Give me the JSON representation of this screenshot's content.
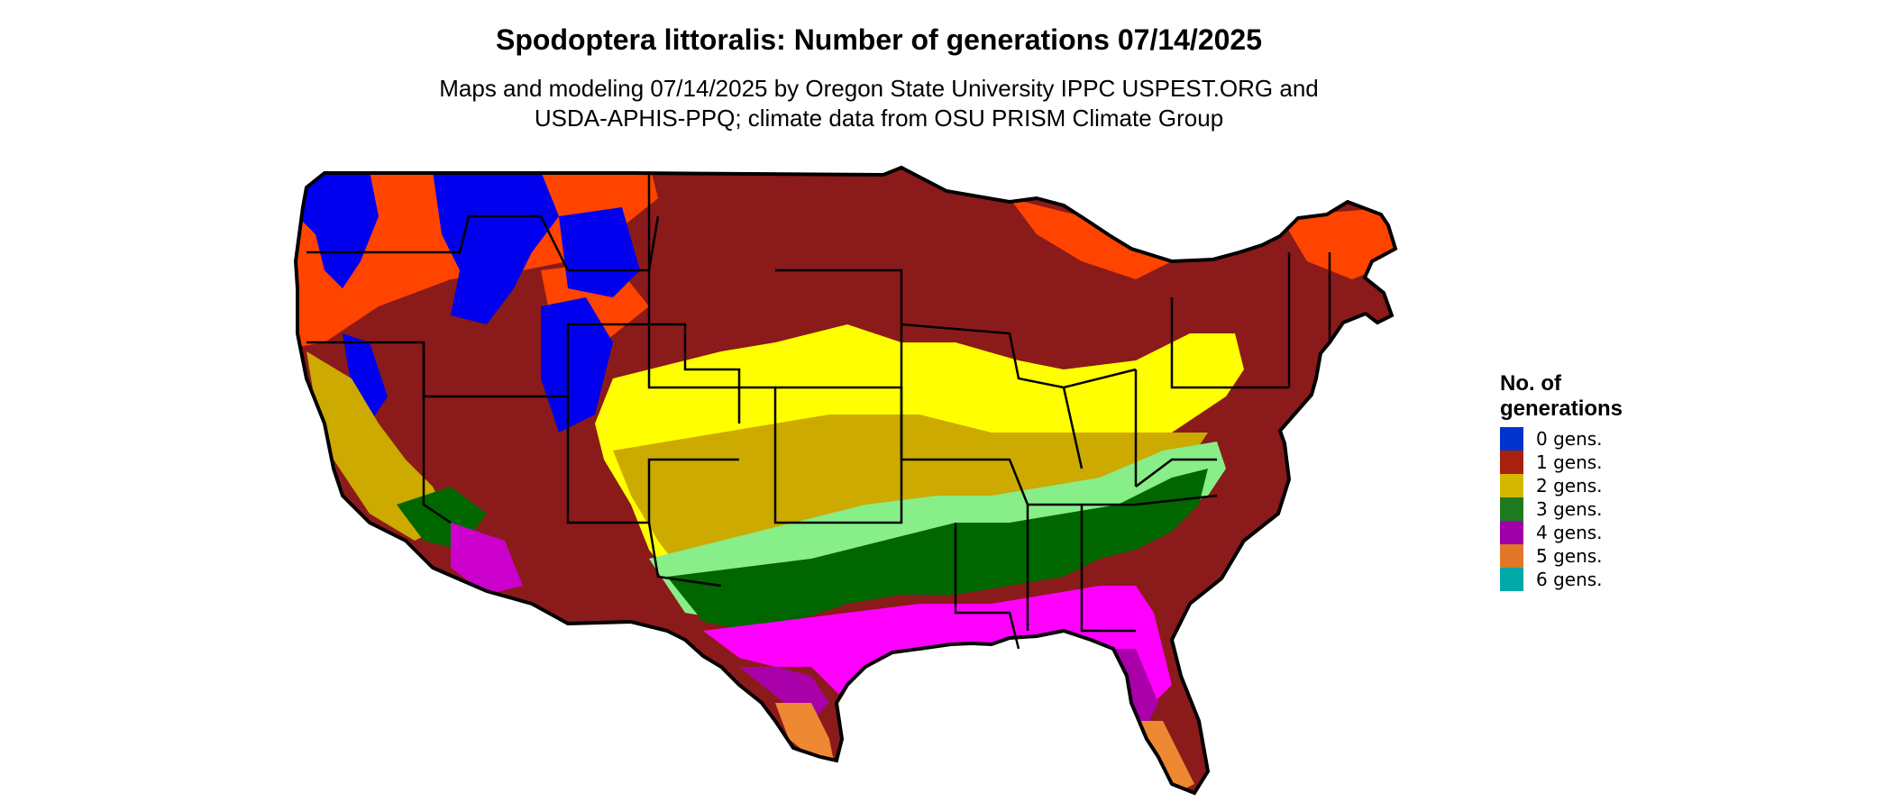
{
  "header": {
    "title": "Spodoptera littoralis: Number of generations 07/14/2025",
    "subtitle_line1": "Maps and modeling 07/14/2025 by Oregon State University IPPC USPEST.ORG and",
    "subtitle_line2": "USDA-APHIS-PPQ; climate data from OSU PRISM Climate Group"
  },
  "legend": {
    "title": "No. of generations",
    "items": [
      {
        "label": "0 gens.",
        "color": "#0033cc"
      },
      {
        "label": "1 gens.",
        "color": "#a8200e"
      },
      {
        "label": "2 gens.",
        "color": "#d4b800"
      },
      {
        "label": "3 gens.",
        "color": "#1f7a1f"
      },
      {
        "label": "4 gens.",
        "color": "#a000a8"
      },
      {
        "label": "5 gens.",
        "color": "#e07828"
      },
      {
        "label": "6 gens.",
        "color": "#00a8a8"
      }
    ]
  },
  "map": {
    "region": "contiguous-united-states",
    "zone_colors": {
      "zero_gens": "#0000ee",
      "one_gen_orange": "#ff4400",
      "one_gen_red": "#8b1a1a",
      "two_gens_yellow": "#ffff00",
      "two_gens_gold": "#ccaa00",
      "three_gens_light": "#88ee88",
      "three_gens_dark": "#006600",
      "four_gens_magenta": "#ff00ff",
      "four_gens_purple": "#aa00aa",
      "five_gens": "#ee8833",
      "six_gens": "#00cccc"
    }
  }
}
